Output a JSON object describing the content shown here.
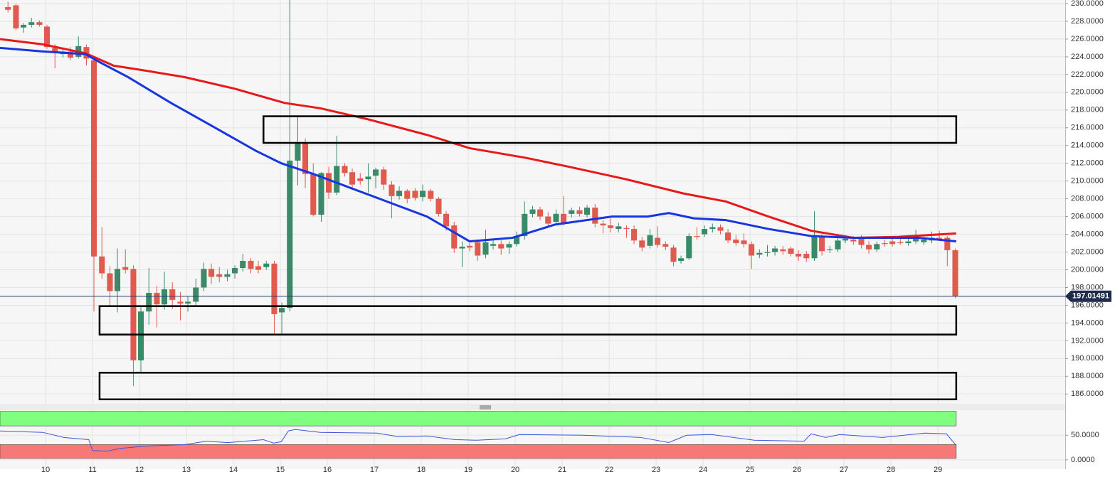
{
  "chart_data": [
    {
      "type": "candlestick",
      "up_color": "#3a8a6a",
      "down_color": "#e05a4e",
      "xlim": [
        9.03,
        31.71
      ],
      "xticks": [
        10,
        11,
        12,
        13,
        14,
        15,
        16,
        17,
        18,
        19,
        20,
        21,
        22,
        23,
        24,
        25,
        26,
        27,
        28,
        29
      ],
      "ylim": [
        184.9,
        230.4
      ],
      "yticks": [
        {
          "value": 186,
          "label": "186.0000"
        },
        {
          "value": 188,
          "label": "188.0000"
        },
        {
          "value": 190,
          "label": "190.0000"
        },
        {
          "value": 192,
          "label": "192.0000"
        },
        {
          "value": 194,
          "label": "194.0000"
        },
        {
          "value": 196,
          "label": "196.0000"
        },
        {
          "value": 198,
          "label": "198.0000"
        },
        {
          "value": 200,
          "label": "200.0000"
        },
        {
          "value": 202,
          "label": "202.0000"
        },
        {
          "value": 204,
          "label": "204.0000"
        },
        {
          "value": 206,
          "label": "206.0000"
        },
        {
          "value": 208,
          "label": "208.0000"
        },
        {
          "value": 210,
          "label": "210.0000"
        },
        {
          "value": 212,
          "label": "212.0000"
        },
        {
          "value": 214,
          "label": "214.0000"
        },
        {
          "value": 216,
          "label": "216.0000"
        },
        {
          "value": 218,
          "label": "218.0000"
        },
        {
          "value": 220,
          "label": "220.0000"
        },
        {
          "value": 222,
          "label": "222.0000"
        },
        {
          "value": 224,
          "label": "224.0000"
        },
        {
          "value": 226,
          "label": "226.0000"
        },
        {
          "value": 228,
          "label": "228.0000"
        },
        {
          "value": 230,
          "label": "230.0000"
        }
      ],
      "grid": true,
      "x": [
        9.2,
        9.37,
        9.53,
        9.7,
        9.87,
        10.03,
        10.2,
        10.37,
        10.53,
        10.7,
        10.87,
        11.03,
        11.2,
        11.37,
        11.53,
        11.7,
        11.87,
        12.03,
        12.2,
        12.37,
        12.53,
        12.7,
        12.87,
        13.03,
        13.2,
        13.37,
        13.53,
        13.7,
        13.87,
        14.03,
        14.2,
        14.37,
        14.53,
        14.7,
        14.87,
        15.03,
        15.2,
        15.37,
        15.53,
        15.7,
        15.87,
        16.03,
        16.2,
        16.37,
        16.53,
        16.7,
        16.87,
        17.03,
        17.2,
        17.37,
        17.53,
        17.7,
        17.87,
        18.03,
        18.2,
        18.37,
        18.53,
        18.7,
        18.87,
        19.03,
        19.2,
        19.37,
        19.53,
        19.7,
        19.87,
        20.03,
        20.2,
        20.37,
        20.53,
        20.7,
        20.87,
        21.03,
        21.2,
        21.37,
        21.53,
        21.7,
        21.87,
        22.03,
        22.2,
        22.37,
        22.53,
        22.7,
        22.87,
        23.03,
        23.2,
        23.37,
        23.53,
        23.7,
        23.87,
        24.03,
        24.2,
        24.37,
        24.53,
        24.7,
        24.87,
        25.03,
        25.2,
        25.37,
        25.53,
        25.7,
        25.87,
        26.03,
        26.2,
        26.37,
        26.53,
        26.7,
        26.87,
        27.03,
        27.2,
        27.37,
        27.53,
        27.7,
        27.87,
        28.03,
        28.2,
        28.37,
        28.53,
        28.7,
        28.87,
        29.03,
        29.2,
        29.37
      ],
      "ohlc": [
        [
          229.6,
          230.2,
          229.0,
          229.3
        ],
        [
          229.8,
          230.0,
          227.0,
          227.2
        ],
        [
          227.3,
          227.8,
          226.7,
          227.6
        ],
        [
          227.6,
          228.4,
          227.3,
          227.9
        ],
        [
          227.9,
          228.1,
          227.4,
          227.6
        ],
        [
          227.4,
          227.6,
          224.9,
          225.1
        ],
        [
          225.0,
          225.4,
          222.7,
          224.5
        ],
        [
          224.3,
          224.9,
          223.9,
          224.6
        ],
        [
          224.6,
          225.1,
          223.6,
          223.9
        ],
        [
          224.0,
          226.3,
          223.8,
          225.2
        ],
        [
          225.1,
          225.4,
          223.0,
          223.8
        ],
        [
          223.6,
          223.8,
          195.3,
          201.5
        ],
        [
          201.5,
          204.8,
          199.0,
          199.6
        ],
        [
          199.6,
          200.4,
          196.0,
          197.6
        ],
        [
          197.6,
          202.4,
          195.2,
          200.1
        ],
        [
          200.3,
          202.3,
          199.6,
          200.0
        ],
        [
          200.1,
          200.5,
          186.9,
          189.8
        ],
        [
          189.8,
          196.0,
          188.3,
          195.3
        ],
        [
          195.3,
          200.2,
          193.8,
          197.4
        ],
        [
          197.4,
          198.2,
          193.5,
          196.1
        ],
        [
          196.1,
          199.8,
          195.5,
          197.8
        ],
        [
          197.8,
          198.6,
          195.6,
          196.6
        ],
        [
          196.4,
          197.5,
          194.3,
          196.2
        ],
        [
          196.2,
          197.0,
          195.3,
          196.4
        ],
        [
          196.4,
          199.0,
          195.8,
          198.0
        ],
        [
          198.0,
          200.8,
          197.6,
          200.1
        ],
        [
          200.1,
          200.7,
          198.4,
          199.2
        ],
        [
          199.5,
          200.3,
          198.6,
          199.2
        ],
        [
          199.2,
          200.0,
          198.7,
          199.5
        ],
        [
          199.6,
          200.5,
          199.0,
          200.2
        ],
        [
          200.2,
          201.8,
          199.8,
          201.0
        ],
        [
          201.0,
          201.3,
          199.6,
          200.1
        ],
        [
          200.4,
          201.0,
          199.6,
          200.0
        ],
        [
          200.3,
          201.0,
          200.0,
          200.7
        ],
        [
          200.7,
          201.0,
          192.7,
          195.0
        ],
        [
          195.2,
          196.3,
          192.8,
          195.7
        ],
        [
          195.7,
          230.4,
          195.3,
          212.3
        ],
        [
          212.3,
          217.4,
          209.5,
          214.3
        ],
        [
          214.3,
          214.8,
          209.2,
          210.8
        ],
        [
          210.8,
          212.0,
          206.0,
          206.2
        ],
        [
          206.2,
          211.0,
          205.4,
          210.9
        ],
        [
          210.9,
          211.6,
          208.0,
          208.7
        ],
        [
          208.7,
          215.1,
          208.4,
          211.7
        ],
        [
          211.7,
          212.0,
          210.5,
          210.9
        ],
        [
          211.0,
          211.4,
          209.0,
          209.6
        ],
        [
          210.3,
          210.9,
          209.6,
          210.0
        ],
        [
          210.2,
          212.0,
          208.7,
          210.5
        ],
        [
          210.6,
          211.5,
          209.2,
          211.3
        ],
        [
          211.3,
          211.6,
          209.0,
          209.6
        ],
        [
          209.6,
          210.0,
          205.8,
          208.3
        ],
        [
          208.3,
          209.4,
          207.9,
          208.9
        ],
        [
          208.9,
          209.1,
          207.5,
          208.0
        ],
        [
          208.9,
          209.2,
          207.8,
          208.1
        ],
        [
          208.2,
          209.6,
          207.7,
          208.9
        ],
        [
          208.9,
          209.1,
          207.7,
          208.0
        ],
        [
          208.0,
          208.2,
          206.0,
          206.3
        ],
        [
          206.3,
          206.6,
          204.4,
          204.9
        ],
        [
          205.0,
          205.4,
          201.9,
          202.4
        ],
        [
          202.4,
          203.2,
          200.3,
          202.6
        ],
        [
          202.7,
          203.0,
          202.1,
          202.5
        ],
        [
          203.1,
          203.4,
          201.0,
          201.6
        ],
        [
          201.7,
          204.5,
          201.3,
          203.1
        ],
        [
          202.7,
          203.5,
          202.3,
          202.9
        ],
        [
          202.9,
          203.3,
          201.7,
          202.4
        ],
        [
          202.5,
          203.2,
          201.8,
          202.9
        ],
        [
          202.9,
          204.3,
          202.6,
          203.8
        ],
        [
          203.8,
          207.7,
          203.4,
          206.3
        ],
        [
          206.3,
          207.2,
          205.9,
          206.8
        ],
        [
          206.8,
          207.1,
          205.6,
          206.0
        ],
        [
          206.0,
          206.5,
          204.8,
          205.2
        ],
        [
          205.4,
          206.8,
          205.0,
          206.3
        ],
        [
          206.3,
          208.3,
          205.0,
          205.3
        ],
        [
          206.3,
          207.0,
          205.9,
          206.7
        ],
        [
          206.7,
          207.1,
          206.0,
          206.3
        ],
        [
          206.2,
          207.3,
          205.9,
          207.0
        ],
        [
          207.0,
          207.4,
          204.8,
          205.2
        ],
        [
          205.2,
          205.6,
          204.1,
          205.0
        ],
        [
          205.0,
          205.8,
          204.2,
          204.7
        ],
        [
          204.6,
          205.3,
          204.2,
          204.9
        ],
        [
          204.7,
          205.0,
          203.6,
          204.6
        ],
        [
          204.6,
          205.0,
          202.9,
          203.3
        ],
        [
          203.3,
          203.7,
          202.1,
          202.5
        ],
        [
          202.7,
          204.6,
          202.4,
          203.9
        ],
        [
          203.6,
          204.9,
          202.5,
          202.8
        ],
        [
          202.9,
          203.2,
          202.2,
          202.6
        ],
        [
          202.5,
          202.8,
          200.4,
          200.9
        ],
        [
          201.0,
          201.6,
          200.7,
          201.3
        ],
        [
          201.3,
          204.1,
          201.1,
          203.8
        ],
        [
          203.8,
          204.8,
          203.4,
          203.7
        ],
        [
          204.0,
          205.0,
          203.7,
          204.6
        ],
        [
          204.6,
          205.2,
          204.2,
          204.8
        ],
        [
          204.8,
          205.1,
          204.0,
          204.4
        ],
        [
          204.2,
          204.6,
          203.0,
          203.3
        ],
        [
          203.4,
          203.9,
          202.7,
          203.0
        ],
        [
          203.3,
          204.1,
          202.5,
          202.9
        ],
        [
          202.9,
          203.2,
          200.1,
          201.6
        ],
        [
          201.7,
          202.3,
          201.3,
          201.9
        ],
        [
          201.9,
          202.8,
          201.5,
          202.0
        ],
        [
          202.0,
          202.7,
          201.6,
          202.4
        ],
        [
          202.3,
          202.7,
          201.7,
          202.1
        ],
        [
          202.4,
          202.6,
          201.5,
          201.8
        ],
        [
          201.8,
          202.2,
          201.0,
          201.5
        ],
        [
          201.8,
          202.1,
          200.9,
          201.3
        ],
        [
          201.3,
          206.6,
          201.0,
          203.7
        ],
        [
          203.7,
          204.0,
          201.6,
          202.1
        ],
        [
          202.2,
          202.7,
          201.9,
          202.3
        ],
        [
          202.3,
          203.6,
          202.0,
          203.3
        ],
        [
          203.3,
          203.8,
          203.0,
          203.5
        ],
        [
          203.4,
          203.8,
          202.8,
          203.2
        ],
        [
          203.5,
          203.9,
          202.4,
          202.8
        ],
        [
          202.8,
          203.2,
          201.8,
          202.3
        ],
        [
          202.3,
          203.2,
          202.0,
          202.9
        ],
        [
          203.0,
          203.4,
          202.6,
          202.9
        ],
        [
          203.2,
          203.5,
          202.6,
          202.9
        ],
        [
          203.1,
          203.7,
          202.8,
          203.0
        ],
        [
          203.0,
          203.5,
          202.7,
          203.2
        ],
        [
          203.2,
          204.5,
          202.9,
          203.6
        ],
        [
          203.1,
          203.7,
          202.8,
          203.4
        ],
        [
          203.3,
          204.3,
          203.0,
          203.6
        ],
        [
          203.6,
          204.4,
          203.3,
          203.5
        ],
        [
          203.6,
          203.8,
          200.4,
          202.2
        ],
        [
          202.2,
          202.4,
          196.8,
          197.0
        ]
      ],
      "series": [
        {
          "color": "#e8191b",
          "x": [
            9.03,
            9.94,
            10.85,
            11.45,
            12.06,
            12.97,
            14.03,
            15.09,
            15.85,
            16.91,
            18.12,
            19.03,
            20.24,
            21.15,
            22.36,
            23.58,
            24.48,
            25.39,
            26.3,
            27.21,
            28.12,
            29.39
          ],
          "values": [
            226.0,
            225.4,
            224.4,
            223.0,
            222.5,
            221.7,
            220.4,
            218.8,
            218.2,
            216.9,
            215.2,
            213.7,
            212.6,
            211.6,
            210.2,
            208.6,
            207.7,
            206.0,
            204.4,
            203.6,
            203.7,
            204.1
          ]
        },
        {
          "color": "#1836e0",
          "x": [
            9.03,
            9.94,
            10.85,
            11.15,
            11.76,
            12.67,
            13.58,
            14.48,
            15.02,
            15.7,
            16.91,
            18.12,
            19.03,
            19.94,
            20.85,
            22.06,
            22.82,
            23.27,
            23.8,
            24.48,
            25.39,
            26.3,
            27.21,
            28.58,
            29.39
          ],
          "values": [
            225.0,
            224.6,
            224.3,
            223.4,
            221.7,
            218.8,
            216.1,
            213.4,
            212.0,
            210.8,
            208.4,
            206.0,
            203.2,
            203.6,
            205.1,
            206.0,
            206.0,
            206.4,
            205.8,
            205.6,
            204.6,
            203.8,
            203.6,
            203.6,
            203.2
          ]
        }
      ],
      "zones": [
        {
          "x": [
            14.64,
            29.39
          ],
          "y": [
            214.3,
            217.3
          ]
        },
        {
          "x": [
            11.15,
            29.39
          ],
          "y": [
            192.7,
            195.9
          ]
        },
        {
          "x": [
            11.15,
            29.39
          ],
          "y": [
            185.4,
            188.4
          ]
        }
      ],
      "last_price": 197.01491
    },
    {
      "type": "line",
      "color": "#3a55d8",
      "xlim": [
        9.03,
        31.71
      ],
      "ylim": [
        -19,
        101
      ],
      "yticks": [
        {
          "value": 50,
          "label": "50.0000"
        },
        {
          "value": 0,
          "label": "0.0000"
        }
      ],
      "bands": [
        {
          "x": [
            9.03,
            29.39
          ],
          "y": [
            69,
            98.5
          ],
          "color": "#80ff80"
        },
        {
          "x": [
            9.03,
            29.39
          ],
          "y": [
            3,
            31
          ],
          "color": "#f87878"
        }
      ],
      "x": [
        9.03,
        9.94,
        10.39,
        10.92,
        11.0,
        11.3,
        11.61,
        12.14,
        12.97,
        13.42,
        13.88,
        14.64,
        14.86,
        15.02,
        15.17,
        15.32,
        15.85,
        17.06,
        17.52,
        18.12,
        18.73,
        19.18,
        19.79,
        20.09,
        21.45,
        22.67,
        23.27,
        23.65,
        24.18,
        25.09,
        26.15,
        26.3,
        26.61,
        26.91,
        27.82,
        28.73,
        29.18,
        29.39
      ],
      "values": [
        58.8,
        55.9,
        45.6,
        41,
        19,
        17.6,
        23.5,
        27.9,
        31,
        38,
        35,
        41,
        34,
        37,
        58.8,
        61.8,
        55.9,
        54.4,
        47,
        48.5,
        41,
        40,
        42.6,
        51.5,
        50,
        45.6,
        35.3,
        50,
        51.5,
        40,
        38,
        52.9,
        45.6,
        51.5,
        45.6,
        54.4,
        52.9,
        29.4
      ]
    }
  ]
}
